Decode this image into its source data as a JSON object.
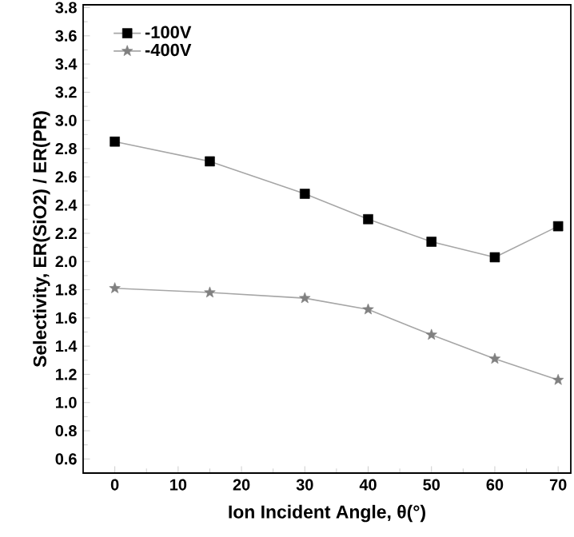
{
  "chart_data": {
    "type": "line",
    "xlabel": "Ion Incident Angle, θ(°)",
    "ylabel": "Selectivity, ER(SiO2) / ER(PR)",
    "x": [
      0,
      15,
      30,
      40,
      50,
      60,
      70
    ],
    "series": [
      {
        "name": "-100V",
        "color": "#000000",
        "marker": "square",
        "values": [
          2.85,
          2.71,
          2.48,
          2.3,
          2.14,
          2.03,
          2.25
        ]
      },
      {
        "name": "-400V",
        "color": "#808080",
        "marker": "star",
        "values": [
          1.81,
          1.78,
          1.74,
          1.66,
          1.48,
          1.31,
          1.16
        ]
      }
    ],
    "xlim": [
      -5,
      72
    ],
    "ylim": [
      0.5,
      3.82
    ],
    "xticks": [
      0,
      10,
      20,
      30,
      40,
      50,
      60,
      70
    ],
    "yticks": [
      0.6,
      0.8,
      {
        "value": 1,
        "label": "1.0"
      },
      1.2,
      1.4,
      1.6,
      1.8,
      {
        "value": 2,
        "label": "2.0"
      },
      2.2,
      2.4,
      2.6,
      2.8,
      {
        "value": 3,
        "label": "3.0"
      },
      3.2,
      3.4,
      3.6,
      3.8
    ],
    "legend": "top left",
    "grid": false,
    "line_style": "solid"
  }
}
